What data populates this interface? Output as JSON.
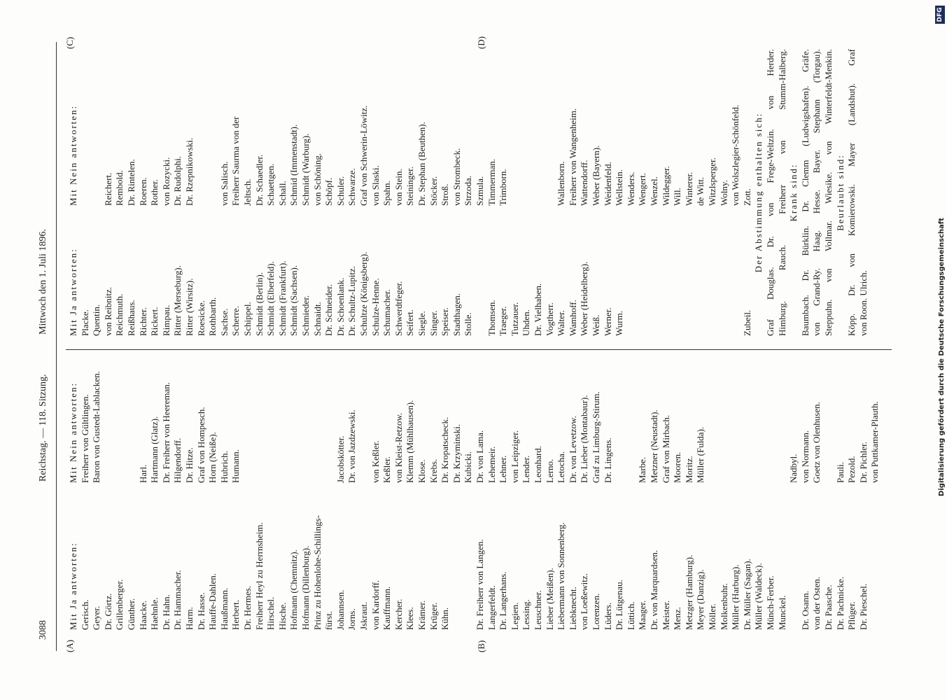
{
  "header": {
    "page_number": "3088",
    "session": "Reichstag. — 118. Sitzung.",
    "date": "Mittwoch den 1. Juli 1896."
  },
  "margin_letters": [
    "(A)",
    "(B)",
    "(C)",
    "(D)"
  ],
  "left_column": {
    "headings": [
      "Mit Ja antworten:",
      "Mit Nein antworten:"
    ],
    "rows": [
      [
        "Gerisch.",
        "Freiherr von Gültlingen."
      ],
      [
        "Geyer.",
        "Baron von Gustedt-Lablacken."
      ],
      [
        "Dr. Görtz.",
        null
      ],
      [
        "Grillenberger.",
        null
      ],
      [
        "Günther.",
        null
      ],
      [
        "Haacke.",
        "Harl."
      ],
      [
        "Haehnle.",
        "Hartmann (Glatz)."
      ],
      [
        "Dr. Hahn.",
        "Dr. Freiherr von Heereman."
      ],
      [
        "Dr. Hammacher.",
        "Hilgendorff."
      ],
      [
        "Harm.",
        "Dr. Hitze."
      ],
      [
        "Dr. Hasse.",
        "Graf von Hompesch."
      ],
      [
        "Hauffe-Dahlen.",
        "Horn (Neiße)."
      ],
      [
        "Haußmann.",
        "Hubrich."
      ],
      [
        "Herbert.",
        "Humann."
      ],
      [
        "Dr. Hermes.",
        null
      ],
      [
        "Freiherr Heyl zu Herrnsheim.",
        null
      ],
      [
        "Hirschel.",
        null
      ],
      [
        "Hische.",
        null
      ],
      [
        "Hofmann (Chemnitz).",
        null
      ],
      [
        "Hofmann (Dillenburg).",
        null
      ],
      [
        "Prinz zu Hohenlohe-Schillings-",
        null
      ],
      [
        "fürst.",
        null
      ],
      [
        "Johannsen.",
        "Jacobskötter."
      ],
      [
        "Jorns.",
        "Dr. von Jazdzewski."
      ],
      [
        "Jskraut.",
        null
      ],
      [
        "von Kardorff.",
        "von Keßler."
      ],
      [
        "Kauffmann.",
        "Keßler."
      ],
      [
        "Kercher.",
        "von Kleist-Retzow."
      ],
      [
        "Klees.",
        "Klemm (Mühlhausen)."
      ],
      [
        "Krämer.",
        "Klose."
      ],
      [
        "Krüger.",
        "Krebs."
      ],
      [
        "Kühn.",
        "Dr. Kropatscheck."
      ],
      [
        null,
        "Dr. Krzyminski."
      ],
      [
        null,
        "Kubicki."
      ],
      [
        "Dr. Freiherr von Langen.",
        "Dr. von Lama."
      ],
      [
        "Langerfeldt.",
        "Lehemeir."
      ],
      [
        "Dr. Langerhans.",
        "Lehner."
      ],
      [
        "Legien.",
        "von Leipziger."
      ],
      [
        "Lessing.",
        "Lender."
      ],
      [
        "Leuschner.",
        "Leonhard."
      ],
      [
        "Lieber (Meißen).",
        "Lerno."
      ],
      [
        "Liebermann von Sonnenberg.",
        "Letocha."
      ],
      [
        "Liebknecht.",
        "Dr. von Levetzow."
      ],
      [
        "von Loeßewitz.",
        "Dr. Lieber (Montabaur)."
      ],
      [
        "Lorenzen.",
        "Graf zu Limburg-Stirum."
      ],
      [
        "Lüders.",
        "Dr. Lingens."
      ],
      [
        "Dr. Lütgenau.",
        null
      ],
      [
        "Lüttich.",
        null
      ],
      [
        "Maager.",
        "Marbe."
      ],
      [
        "Dr. von Marquardsen.",
        "Metzner (Neustadt)."
      ],
      [
        "Meister.",
        "Graf von Mirbach."
      ],
      [
        "Menz.",
        "Mooren."
      ],
      [
        "Metzger (Hamburg).",
        "Moritz."
      ],
      [
        "Meyer (Danzig).",
        "Müller (Fulda)."
      ],
      [
        "Möller.",
        null
      ],
      [
        "Molkenbuhr.",
        null
      ],
      [
        "Müller (Harburg).",
        null
      ],
      [
        "Dr. Müller (Sagan).",
        null
      ],
      [
        "Müller (Waldeck).",
        null
      ],
      [
        "Münch-Ferber.",
        null
      ],
      [
        "Munckel.",
        null
      ],
      [
        null,
        "Nadbyl."
      ],
      [
        "Dr. Osann.",
        "von Normann."
      ],
      [
        "von der Osten.",
        "Goetz von Olenhusen."
      ],
      [
        "Dr. Paasche.",
        null
      ],
      [
        "Dr. Pachnicke.",
        "Pauli."
      ],
      [
        "Pflüger.",
        "Pezold."
      ],
      [
        "Dr. Pieschel.",
        "Dr. Pichler."
      ],
      [
        null,
        "von Puttkamer-Plauth."
      ]
    ]
  },
  "right_column": {
    "headings": [
      "Mit Ja antworten:",
      "Mit Nein antworten:"
    ],
    "rows": [
      [
        "Placke.",
        null
      ],
      [
        "Quentin.",
        null
      ],
      [
        "von Reibnitz.",
        "Reichert."
      ],
      [
        "Reichmuth.",
        "Rembold."
      ],
      [
        "Reißhaus.",
        "Dr. Rintelen."
      ],
      [
        "Richter.",
        "Roeren."
      ],
      [
        "Rickert.",
        "Rother."
      ],
      [
        "Rimpau.",
        "von Rozycki."
      ],
      [
        "Ritter (Merseburg).",
        "Dr. Rudolphi."
      ],
      [
        "Ritter (Wirsitz).",
        "Dr. Rzepnikowski."
      ],
      [
        "Roesicke.",
        null
      ],
      [
        "Rothbarth.",
        null
      ],
      [
        "Sachse.",
        "von Salisch."
      ],
      [
        "Scherre.",
        "Freiherr Saurma von der"
      ],
      [
        "Schippel.",
        "Jeltsch."
      ],
      [
        "Schmidt (Berlin).",
        "Dr. Schaedler."
      ],
      [
        "Schmidt (Elberfeld).",
        "Schaettgen."
      ],
      [
        "Schmidt (Frankfurt).",
        "Schall."
      ],
      [
        "Schmidt (Sachsen).",
        "Schmid (Immenstadt)."
      ],
      [
        "Schmieder.",
        "Schmidt (Warburg)."
      ],
      [
        "Schnaidt.",
        "von Schöning."
      ],
      [
        "Dr. Schneider.",
        "Schöpf."
      ],
      [
        "Dr. Schoenlank.",
        "Schuler."
      ],
      [
        "Dr. Schultz-Lupitz.",
        "Schwarze."
      ],
      [
        "Schultze (Königsberg).",
        "Graf von Schwerin-Löwitz."
      ],
      [
        "Schulze-Henne.",
        "von Slaski."
      ],
      [
        "Schumacher.",
        "Spahn."
      ],
      [
        "Schwerdtfeger.",
        "von Stein."
      ],
      [
        "Seifert.",
        "Steininger."
      ],
      [
        "Siegle.",
        "Dr. Stephan (Beuthen)."
      ],
      [
        "Singer.",
        "Stöcker."
      ],
      [
        "Speiser.",
        "Stroß."
      ],
      [
        "Stadthagen.",
        "von Strombeck."
      ],
      [
        "Stolle.",
        "Strzoda."
      ],
      [
        null,
        "Szmula."
      ],
      [
        "Thomsen.",
        "Timmerman."
      ],
      [
        "Traeger.",
        "Trimborn."
      ],
      [
        "Tutzauer.",
        null
      ],
      [
        "Uhden.",
        null
      ],
      [
        "Dr. Vielhaben.",
        null
      ],
      [
        "Vogtherr.",
        null
      ],
      [
        "Walter.",
        "Wallenborn."
      ],
      [
        "Wamhoff.",
        "Freiherr von Wangenheim."
      ],
      [
        "Weber (Heidelberg).",
        "Wattendorff."
      ],
      [
        "Weiß.",
        "Weber (Bayern)."
      ],
      [
        "Werner.",
        "Weidenfeld."
      ],
      [
        "Wurm.",
        "Wellstein."
      ],
      [
        null,
        "Wenders."
      ],
      [
        null,
        "Wengert."
      ],
      [
        null,
        "Wenzel."
      ],
      [
        null,
        "Wildegger."
      ],
      [
        null,
        "Will."
      ],
      [
        null,
        "Winterer."
      ],
      [
        null,
        "de Witt."
      ],
      [
        null,
        "Witzlsperger."
      ],
      [
        null,
        "Wolny."
      ],
      [
        null,
        "von Wolszlegier-Schönfeld."
      ],
      [
        "Zubeil.",
        "Zott."
      ]
    ],
    "sections": [
      {
        "heading": "Der Abstimmung enthalten sich:",
        "lines": [
          "Graf Douglas. Dr. von Frege-Weltzin. von Herder.",
          "Himburg. Rauch. Freiherr von Stumm-Halberg."
        ]
      },
      {
        "heading": "Krank sind:",
        "lines": [
          "Baumbach. Dr. Bürklin. Dr. Clemm (Ludwigshafen). Gräfe.",
          "von Grand-Ry. Haag. Hesse. Bayer. Stephann (Torgau).",
          "Steppuhn. von Vollmar. Wiesike. von Winterfeldt-Menkin."
        ]
      },
      {
        "heading": "Beurlaubt sind:",
        "lines": [
          "Köpp. Dr. von Komierowski. Mayer (Landshut). Graf",
          "von Roon. Ulrich."
        ]
      }
    ]
  },
  "footer_credit": "Digitalisierung gefördert durch die Deutsche Forschungsgemeinschaft",
  "logo": "DFG"
}
